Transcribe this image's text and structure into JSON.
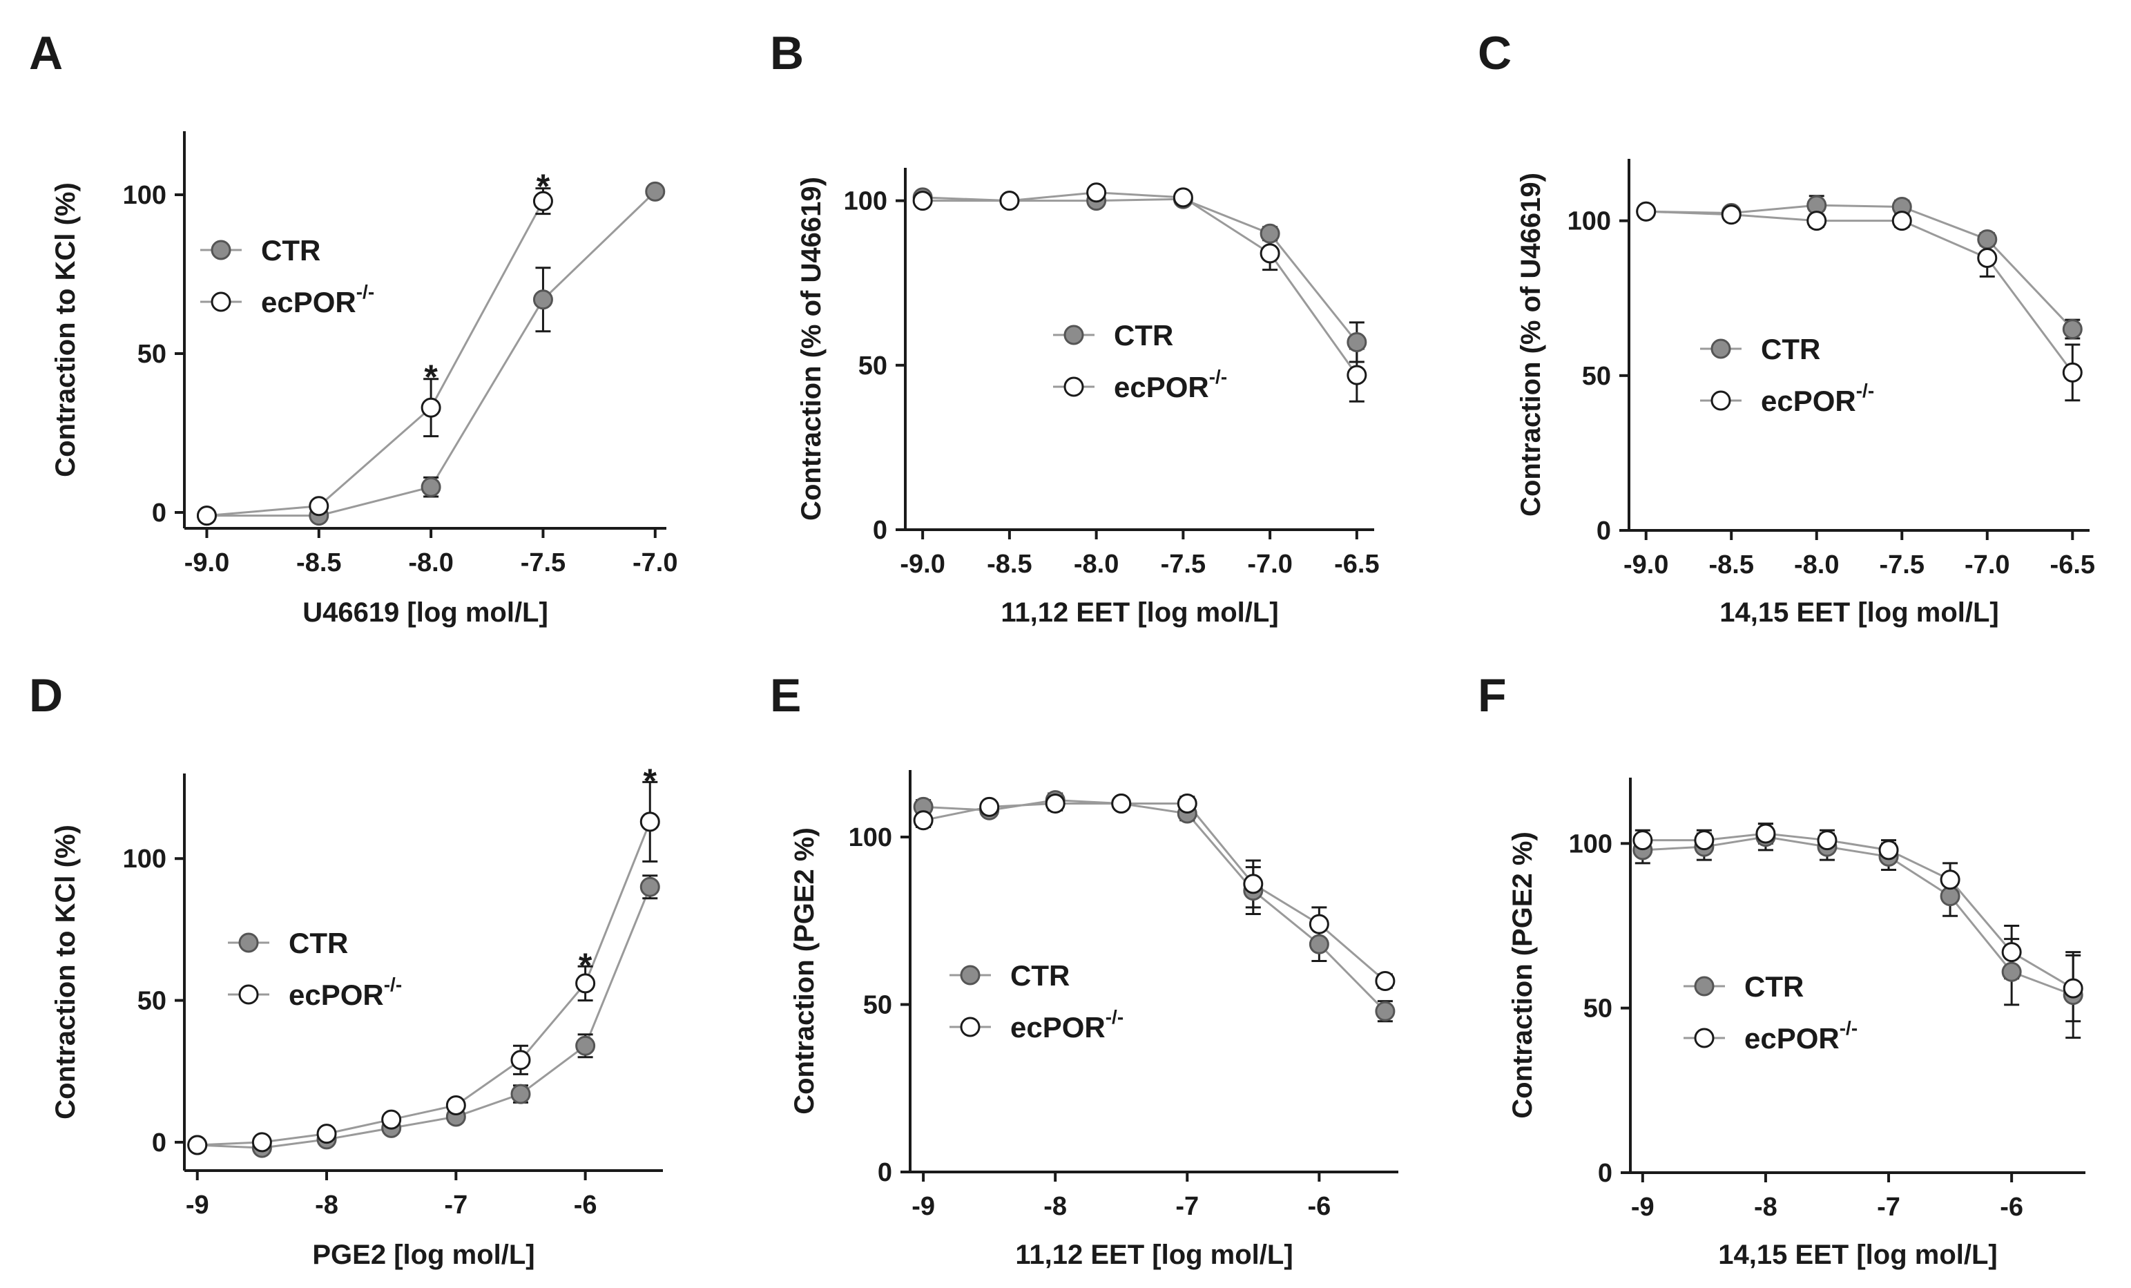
{
  "colors": {
    "ctr": "#8c8c8c",
    "ko": "#ffffff",
    "line": "#9a9a9a",
    "axis": "#1a1a1a"
  },
  "chart_data": [
    {
      "panel": "A",
      "type": "line",
      "xlabel": "U46619 [log mol/L]",
      "ylabel": "Contraction to KCl (%)",
      "xlim": [
        -9.1,
        -6.95
      ],
      "ylim": [
        -5,
        120
      ],
      "xticks": [
        -9.0,
        -8.5,
        -8.0,
        -7.5,
        -7.0
      ],
      "xtick_labels": [
        "-9.0",
        "-8.5",
        "-8.0",
        "-7.5",
        "-7.0"
      ],
      "yticks": [
        0,
        50,
        100
      ],
      "ytick_labels": [
        "0",
        "50",
        "100"
      ],
      "legend": {
        "position": "upper-left",
        "entries": [
          "CTR",
          "ecPOR",
          "-/-"
        ]
      },
      "series": [
        {
          "name": "CTR",
          "x": [
            -9.0,
            -8.5,
            -8.0,
            -7.5,
            -7.0
          ],
          "y": [
            -1,
            -1,
            8,
            67,
            101
          ],
          "err": [
            1.5,
            1,
            3,
            10,
            1
          ]
        },
        {
          "name": "ecPOR-/-",
          "x": [
            -9.0,
            -8.5,
            -8.0,
            -7.5
          ],
          "y": [
            -1,
            2,
            33,
            98
          ],
          "err": [
            1.5,
            1.5,
            9,
            4
          ]
        }
      ],
      "annotations": [
        {
          "x": -8.0,
          "y": 45,
          "text": "*"
        },
        {
          "x": -7.5,
          "y": 105,
          "text": "*"
        }
      ]
    },
    {
      "panel": "B",
      "type": "line",
      "xlabel": "11,12  EET [log mol/L]",
      "ylabel": "Contraction (% of  U46619)",
      "xlim": [
        -9.1,
        -6.4
      ],
      "ylim": [
        0,
        110
      ],
      "xticks": [
        -9.0,
        -8.5,
        -8.0,
        -7.5,
        -7.0,
        -6.5
      ],
      "xtick_labels": [
        "-9.0",
        "-8.5",
        "-8.0",
        "-7.5",
        "-7.0",
        "-6.5"
      ],
      "yticks": [
        0,
        50,
        100
      ],
      "ytick_labels": [
        "0",
        "50",
        "100"
      ],
      "legend": {
        "position": "center",
        "entries": [
          "CTR",
          "ecPOR",
          "-/-"
        ]
      },
      "series": [
        {
          "name": "CTR",
          "x": [
            -9.0,
            -8.5,
            -8.0,
            -7.5,
            -7.0,
            -6.5
          ],
          "y": [
            101,
            100,
            100,
            100.5,
            90,
            57
          ],
          "err": [
            1,
            1,
            1,
            1,
            2,
            6
          ]
        },
        {
          "name": "ecPOR-/-",
          "x": [
            -9.0,
            -8.5,
            -8.0,
            -7.5,
            -7.0,
            -6.5
          ],
          "y": [
            100,
            100,
            102.5,
            101,
            84,
            47
          ],
          "err": [
            1,
            1,
            1,
            1,
            5,
            8
          ]
        }
      ],
      "annotations": []
    },
    {
      "panel": "C",
      "type": "line",
      "xlabel": "14,15  EET [log mol/L]",
      "ylabel": "Contraction (% of U46619)",
      "xlim": [
        -9.1,
        -6.4
      ],
      "ylim": [
        0,
        120
      ],
      "xticks": [
        -9.0,
        -8.5,
        -8.0,
        -7.5,
        -7.0,
        -6.5
      ],
      "xtick_labels": [
        "-9.0",
        "-8.5",
        "-8.0",
        "-7.5",
        "-7.0",
        "-6.5"
      ],
      "yticks": [
        0,
        50,
        100
      ],
      "ytick_labels": [
        "0",
        "50",
        "100"
      ],
      "legend": {
        "position": "center",
        "entries": [
          "CTR",
          "ecPOR",
          "-/-"
        ]
      },
      "series": [
        {
          "name": "CTR",
          "x": [
            -9.0,
            -8.5,
            -8.0,
            -7.5,
            -7.0,
            -6.5
          ],
          "y": [
            103,
            102.5,
            105,
            104.5,
            94,
            65
          ],
          "err": [
            1,
            1,
            3,
            2,
            2,
            3
          ]
        },
        {
          "name": "ecPOR-/-",
          "x": [
            -9.0,
            -8.5,
            -8.0,
            -7.5,
            -7.0,
            -6.5
          ],
          "y": [
            103,
            102,
            100,
            100,
            88,
            51
          ],
          "err": [
            1,
            1,
            2,
            2,
            6,
            9
          ]
        }
      ],
      "annotations": []
    },
    {
      "panel": "D",
      "type": "line",
      "xlabel": "PGE2 [log mol/L]",
      "ylabel": "Contraction to KCl (%)",
      "xlim": [
        -9.1,
        -5.4
      ],
      "ylim": [
        -10,
        130
      ],
      "xticks": [
        -9,
        -8,
        -7,
        -6
      ],
      "xtick_labels": [
        "-9",
        "-8",
        "-7",
        "-6"
      ],
      "yticks": [
        0,
        50,
        100
      ],
      "ytick_labels": [
        "0",
        "50",
        "100"
      ],
      "legend": {
        "position": "center-left",
        "entries": [
          "CTR",
          "ecPOR",
          "-/-"
        ]
      },
      "series": [
        {
          "name": "CTR",
          "x": [
            -9.0,
            -8.5,
            -8.0,
            -7.5,
            -7.0,
            -6.5,
            -6.0,
            -5.5
          ],
          "y": [
            -1,
            -2,
            1,
            5,
            9,
            17,
            34,
            90
          ],
          "err": [
            1,
            1,
            1,
            1,
            2,
            3,
            4,
            4
          ]
        },
        {
          "name": "ecPOR-/-",
          "x": [
            -9.0,
            -8.5,
            -8.0,
            -7.5,
            -7.0,
            -6.5,
            -6.0,
            -5.5
          ],
          "y": [
            -1,
            0,
            3,
            8,
            13,
            29,
            56,
            113
          ],
          "err": [
            1,
            1,
            1,
            1,
            2,
            5,
            6,
            14
          ]
        }
      ],
      "annotations": [
        {
          "x": -6.0,
          "y": 65,
          "text": "*"
        },
        {
          "x": -5.5,
          "y": 130,
          "text": "*"
        }
      ]
    },
    {
      "panel": "E",
      "type": "line",
      "xlabel": "11,12 EET [log mol/L]",
      "ylabel": "Contraction (PGE2 %)",
      "xlim": [
        -9.1,
        -5.4
      ],
      "ylim": [
        0,
        120
      ],
      "xticks": [
        -9,
        -8,
        -7,
        -6
      ],
      "xtick_labels": [
        "-9",
        "-8",
        "-7",
        "-6"
      ],
      "yticks": [
        0,
        50,
        100
      ],
      "ytick_labels": [
        "0",
        "50",
        "100"
      ],
      "legend": {
        "position": "lower-left",
        "entries": [
          "CTR",
          "ecPOR",
          "-/-"
        ]
      },
      "series": [
        {
          "name": "CTR",
          "x": [
            -9.0,
            -8.5,
            -8.0,
            -7.5,
            -7.0,
            -6.5,
            -6.0,
            -5.5
          ],
          "y": [
            109,
            108,
            111,
            110,
            107,
            84,
            68,
            48
          ],
          "err": [
            2,
            1,
            2,
            1,
            2,
            7,
            5,
            3
          ]
        },
        {
          "name": "ecPOR-/-",
          "x": [
            -9.0,
            -8.5,
            -8.0,
            -7.5,
            -7.0,
            -6.5,
            -6.0,
            -5.5
          ],
          "y": [
            105,
            109,
            110,
            110,
            110,
            86,
            74,
            57
          ],
          "err": [
            2,
            1,
            2,
            1,
            2,
            7,
            5,
            2
          ]
        }
      ],
      "annotations": []
    },
    {
      "panel": "F",
      "type": "line",
      "xlabel": "14,15 EET [log mol/L]",
      "ylabel": "Contraction (PGE2 %)",
      "xlim": [
        -9.1,
        -5.4
      ],
      "ylim": [
        0,
        120
      ],
      "xticks": [
        -9,
        -8,
        -7,
        -6
      ],
      "xtick_labels": [
        "-9",
        "-8",
        "-7",
        "-6"
      ],
      "yticks": [
        0,
        50,
        100
      ],
      "ytick_labels": [
        "0",
        "50",
        "100"
      ],
      "legend": {
        "position": "lower-left",
        "entries": [
          "CTR",
          "ecPOR",
          "-/-"
        ]
      },
      "series": [
        {
          "name": "CTR",
          "x": [
            -9.0,
            -8.5,
            -8.0,
            -7.5,
            -7.0,
            -6.5,
            -6.0,
            -5.5
          ],
          "y": [
            98,
            99,
            102,
            99,
            96,
            84,
            61,
            54
          ],
          "err": [
            4,
            4,
            4,
            4,
            4,
            6,
            10,
            13
          ]
        },
        {
          "name": "ecPOR-/-",
          "x": [
            -9.0,
            -8.5,
            -8.0,
            -7.5,
            -7.0,
            -6.5,
            -6.0,
            -5.5
          ],
          "y": [
            101,
            101,
            103,
            101,
            98,
            89,
            67,
            56
          ],
          "err": [
            3,
            3,
            3,
            3,
            3,
            5,
            8,
            10
          ]
        }
      ],
      "annotations": []
    }
  ]
}
